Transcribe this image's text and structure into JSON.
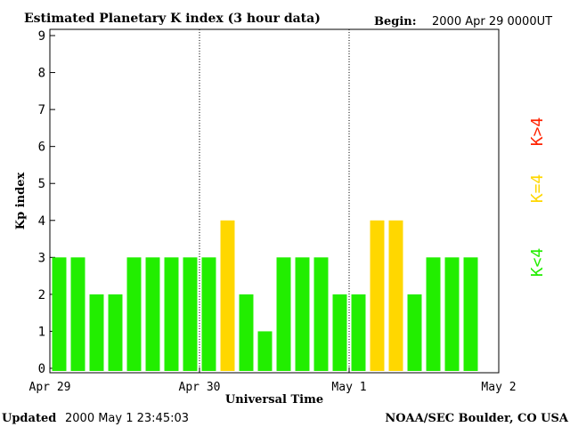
{
  "header": {
    "title": "Estimated Planetary K index (3 hour data)",
    "begin_label": "Begin:",
    "begin_value": "2000 Apr 29 0000UT"
  },
  "footer": {
    "updated_label": "Updated",
    "updated_value": "2000 May  1 23:45:03",
    "source": "NOAA/SEC Boulder, CO USA"
  },
  "chart_data": {
    "type": "bar",
    "xlabel": "Universal Time",
    "ylabel": "Kp index",
    "ylim": [
      0,
      9
    ],
    "yticks": [
      0,
      1,
      2,
      3,
      4,
      5,
      6,
      7,
      8,
      9
    ],
    "x_tick_labels": [
      "Apr 29",
      "Apr 30",
      "May 1",
      "May 2"
    ],
    "values": [
      3,
      3,
      2,
      2,
      3,
      3,
      3,
      3,
      3,
      4,
      2,
      1,
      3,
      3,
      3,
      2,
      2,
      4,
      4,
      2,
      3,
      3,
      3
    ],
    "colors": {
      "low": "#22ee00",
      "mid": "#ffd700",
      "high": "#ff2200"
    },
    "legend": [
      {
        "label": "K<4",
        "color": "#22ee00"
      },
      {
        "label": "K=4",
        "color": "#ffd700"
      },
      {
        "label": "K>4",
        "color": "#ff2200"
      }
    ],
    "day_separators": true
  }
}
